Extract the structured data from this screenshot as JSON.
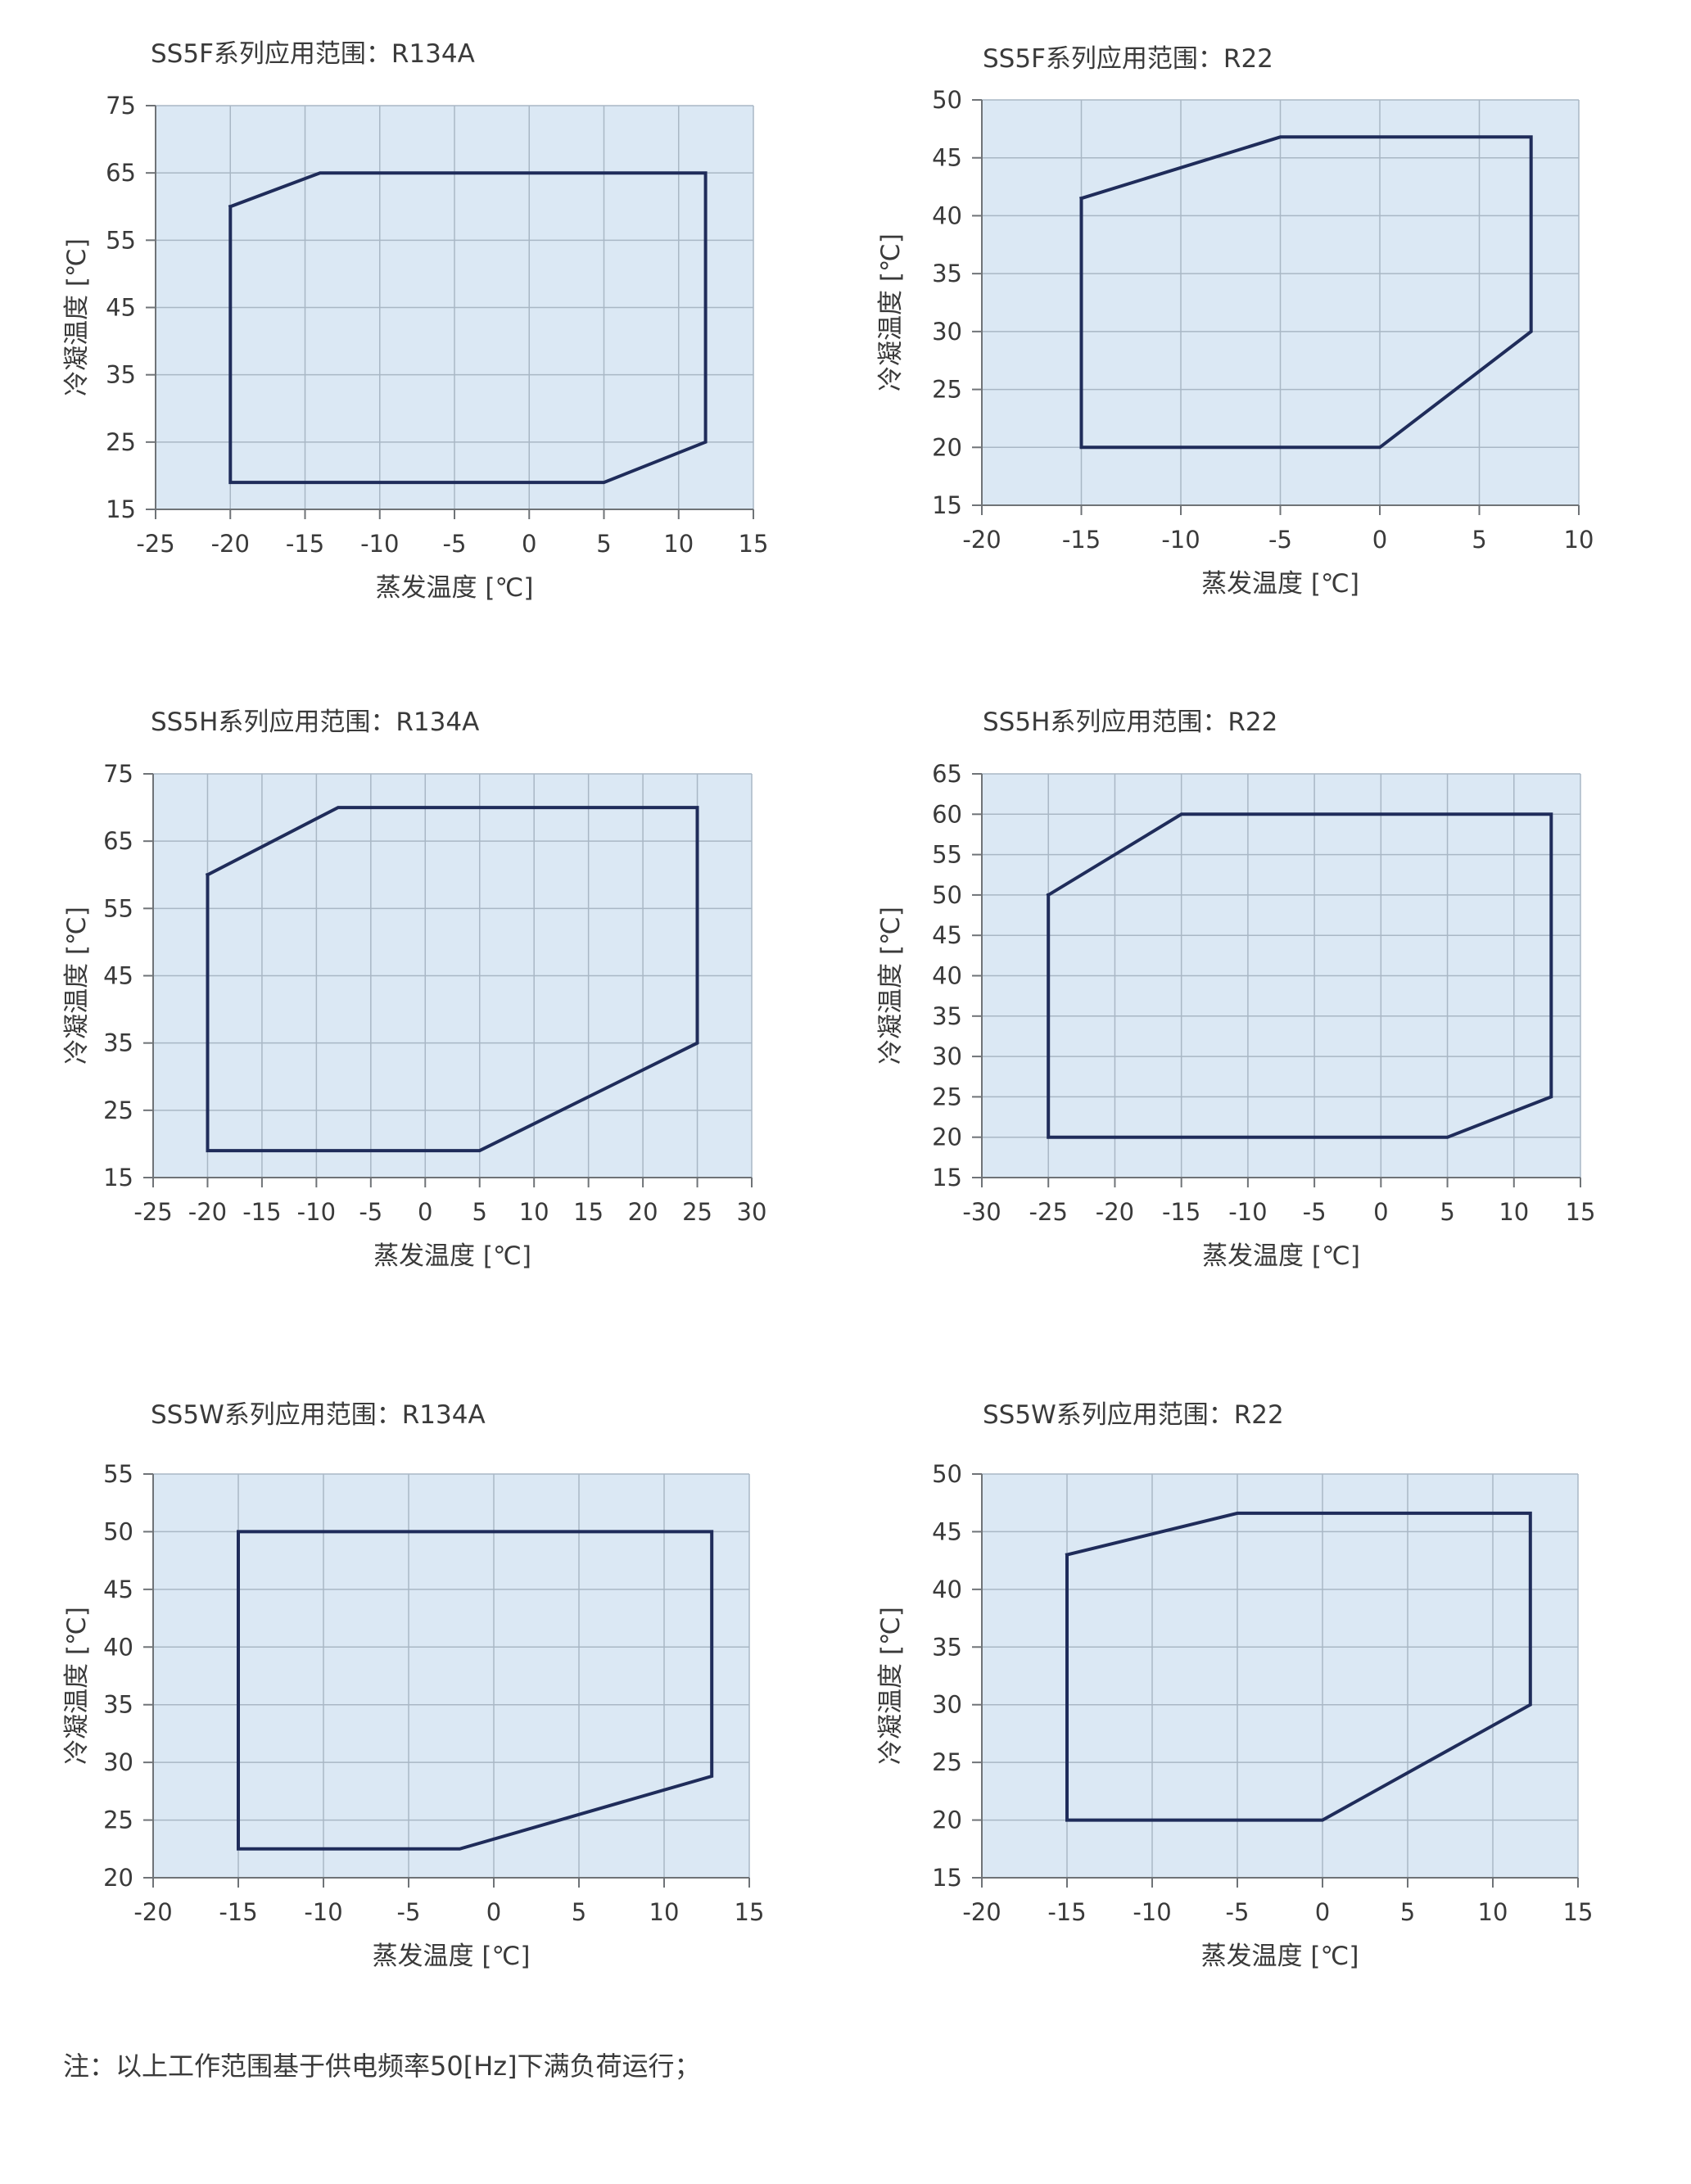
{
  "colors": {
    "plot_background": "#dbe8f4",
    "grid": "#a9b7c5",
    "axis": "#6f7377",
    "envelope_line": "#1f2c5a",
    "text": "#3a3a3a"
  },
  "chart_data": [
    {
      "type": "line",
      "title": "SS5F系列应用范围：R134A",
      "xlabel": "蒸发温度 [℃]",
      "ylabel": "冷凝温度 [℃]",
      "xlim": [
        -25,
        15
      ],
      "ylim": [
        15,
        75
      ],
      "x_ticks": [
        -25,
        -20,
        -15,
        -10,
        -5,
        0,
        5,
        10,
        15
      ],
      "y_ticks": [
        15,
        25,
        35,
        45,
        55,
        65,
        75
      ],
      "grid": true,
      "series": [
        {
          "x": [
            -20,
            -14,
            11.8,
            11.8,
            5,
            -20,
            -20
          ],
          "y": [
            60,
            65,
            65,
            25,
            19,
            19,
            60
          ]
        }
      ]
    },
    {
      "type": "line",
      "title": "SS5F系列应用范围：R22",
      "xlabel": "蒸发温度 [℃]",
      "ylabel": "冷凝温度 [℃]",
      "xlim": [
        -20,
        10
      ],
      "ylim": [
        15,
        50
      ],
      "x_ticks": [
        -20,
        -15,
        -10,
        -5,
        0,
        5,
        10
      ],
      "y_ticks": [
        15,
        20,
        25,
        30,
        35,
        40,
        45,
        50
      ],
      "grid": true,
      "series": [
        {
          "x": [
            -15,
            -5,
            7.6,
            7.6,
            0,
            -15,
            -15
          ],
          "y": [
            41.5,
            46.8,
            46.8,
            30,
            20,
            20,
            41.5
          ]
        }
      ]
    },
    {
      "type": "line",
      "title": "SS5H系列应用范围：R134A",
      "xlabel": "蒸发温度 [℃]",
      "ylabel": "冷凝温度 [℃]",
      "xlim": [
        -25,
        30
      ],
      "ylim": [
        15,
        75
      ],
      "x_ticks": [
        -25,
        -20,
        -15,
        -10,
        -5,
        0,
        5,
        10,
        15,
        20,
        25,
        30
      ],
      "y_ticks": [
        15,
        25,
        35,
        45,
        55,
        65,
        75
      ],
      "grid": true,
      "series": [
        {
          "x": [
            -20,
            -8,
            25,
            25,
            5,
            -20,
            -20
          ],
          "y": [
            60,
            70,
            70,
            35,
            19,
            19,
            60
          ]
        }
      ]
    },
    {
      "type": "line",
      "title": "SS5H系列应用范围：R22",
      "xlabel": "蒸发温度 [℃]",
      "ylabel": "冷凝温度 [℃]",
      "xlim": [
        -30,
        15
      ],
      "ylim": [
        15,
        65
      ],
      "x_ticks": [
        -30,
        -25,
        -20,
        -15,
        -10,
        -5,
        0,
        5,
        10,
        15
      ],
      "y_ticks": [
        15,
        20,
        25,
        30,
        35,
        40,
        45,
        50,
        55,
        60,
        65
      ],
      "grid": true,
      "series": [
        {
          "x": [
            -25,
            -15,
            12.8,
            12.8,
            5,
            -25,
            -25
          ],
          "y": [
            50,
            60,
            60,
            25,
            20,
            20,
            50
          ]
        }
      ]
    },
    {
      "type": "line",
      "title": "SS5W系列应用范围：R134A",
      "xlabel": "蒸发温度 [℃]",
      "ylabel": "冷凝温度 [℃]",
      "xlim": [
        -20,
        15
      ],
      "ylim": [
        20,
        55
      ],
      "x_ticks": [
        -20,
        -15,
        -10,
        -5,
        0,
        5,
        10,
        15
      ],
      "y_ticks": [
        20,
        25,
        30,
        35,
        40,
        45,
        50,
        55
      ],
      "grid": true,
      "series": [
        {
          "x": [
            -15,
            12.8,
            12.8,
            -2,
            -15,
            -15
          ],
          "y": [
            50,
            50,
            28.8,
            22.5,
            22.5,
            50
          ]
        }
      ]
    },
    {
      "type": "line",
      "title": "SS5W系列应用范围：R22",
      "xlabel": "蒸发温度 [℃]",
      "ylabel": "冷凝温度 [℃]",
      "xlim": [
        -20,
        15
      ],
      "ylim": [
        15,
        50
      ],
      "x_ticks": [
        -20,
        -15,
        -10,
        -5,
        0,
        5,
        10,
        15
      ],
      "y_ticks": [
        15,
        20,
        25,
        30,
        35,
        40,
        45,
        50
      ],
      "grid": true,
      "series": [
        {
          "x": [
            -15,
            -5,
            12.2,
            12.2,
            0,
            -15,
            -15
          ],
          "y": [
            43,
            46.6,
            46.6,
            30,
            20,
            20,
            43
          ]
        }
      ]
    }
  ],
  "page": {
    "footnote": "注：以上工作范围基于供电频率50[Hz]下满负荷运行；"
  }
}
